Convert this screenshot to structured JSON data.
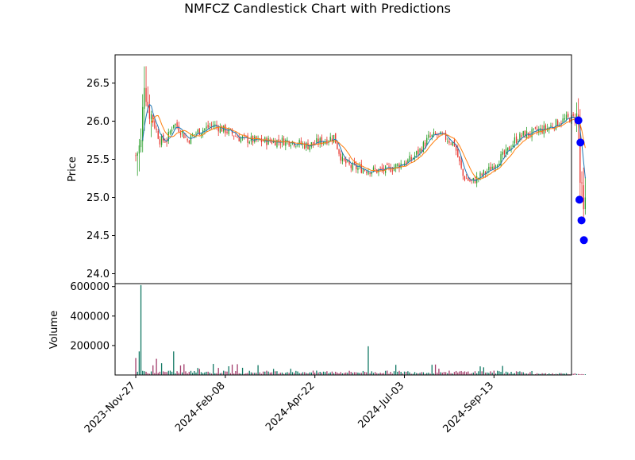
{
  "chart_data": {
    "type": "candlestick",
    "title": "NMFCZ Candlestick Chart with Predictions",
    "price_panel": {
      "ylabel": "Price",
      "ylim": [
        23.87,
        26.87
      ],
      "yticks": [
        "24.0",
        "24.5",
        "25.0",
        "25.5",
        "26.0",
        "26.5"
      ],
      "ytick_values": [
        24.0,
        24.5,
        25.0,
        25.5,
        26.0,
        26.5
      ],
      "moving_average_colors": [
        "#1f77b4",
        "#ff7f0e"
      ],
      "up_color": "#2ca02c",
      "down_color": "#e8312a",
      "prediction_marker_color": "#0000ff",
      "predictions": [
        {
          "x": 257.0,
          "y": 26.01
        },
        {
          "x": 258.2,
          "y": 25.72
        },
        {
          "x": 257.6,
          "y": 24.97
        },
        {
          "x": 258.8,
          "y": 24.7
        },
        {
          "x": 260.2,
          "y": 24.44
        }
      ],
      "trend_anchors": [
        [
          0,
          25.55
        ],
        [
          3,
          25.7
        ],
        [
          5,
          26.55
        ],
        [
          7,
          26.22
        ],
        [
          10,
          26.0
        ],
        [
          14,
          25.75
        ],
        [
          18,
          25.75
        ],
        [
          22,
          25.98
        ],
        [
          26,
          25.88
        ],
        [
          30,
          25.75
        ],
        [
          35,
          25.85
        ],
        [
          40,
          25.9
        ],
        [
          45,
          25.95
        ],
        [
          50,
          25.9
        ],
        [
          55,
          25.85
        ],
        [
          60,
          25.78
        ],
        [
          65,
          25.76
        ],
        [
          70,
          25.74
        ],
        [
          80,
          25.74
        ],
        [
          90,
          25.74
        ],
        [
          96,
          25.7
        ],
        [
          100,
          25.68
        ],
        [
          105,
          25.72
        ],
        [
          110,
          25.75
        ],
        [
          115,
          25.8
        ],
        [
          118,
          25.6
        ],
        [
          120,
          25.48
        ],
        [
          125,
          25.4
        ],
        [
          130,
          25.38
        ],
        [
          135,
          25.36
        ],
        [
          140,
          25.35
        ],
        [
          145,
          25.36
        ],
        [
          150,
          25.4
        ],
        [
          155,
          25.45
        ],
        [
          160,
          25.5
        ],
        [
          165,
          25.62
        ],
        [
          170,
          25.78
        ],
        [
          175,
          25.82
        ],
        [
          180,
          25.78
        ],
        [
          185,
          25.7
        ],
        [
          190,
          25.28
        ],
        [
          195,
          25.2
        ],
        [
          200,
          25.28
        ],
        [
          205,
          25.36
        ],
        [
          210,
          25.48
        ],
        [
          215,
          25.58
        ],
        [
          220,
          25.75
        ],
        [
          225,
          25.82
        ],
        [
          230,
          25.84
        ],
        [
          235,
          25.88
        ],
        [
          240,
          25.92
        ],
        [
          245,
          25.98
        ],
        [
          250,
          26.03
        ],
        [
          255,
          26.04
        ],
        [
          257,
          26.0
        ],
        [
          258,
          25.2
        ],
        [
          259,
          24.95
        ],
        [
          260,
          24.7
        ],
        [
          261,
          24.85
        ]
      ]
    },
    "volume_panel": {
      "ylabel": "Volume",
      "ylim": [
        0,
        620000
      ],
      "yticks": [
        "200000",
        "400000",
        "600000"
      ],
      "ytick_values": [
        200000,
        400000,
        600000
      ],
      "notable_bars": [
        {
          "x": 0,
          "value": 115000
        },
        {
          "x": 2,
          "value": 160000
        },
        {
          "x": 3,
          "value": 610000
        },
        {
          "x": 12,
          "value": 110000
        },
        {
          "x": 15,
          "value": 80000
        },
        {
          "x": 22,
          "value": 160000
        },
        {
          "x": 135,
          "value": 195000
        }
      ]
    },
    "x_axis": {
      "tick_labels": [
        "2023-Nov-27",
        "2024-Feb-08",
        "2024-Apr-22",
        "2024-Jul-03",
        "2024-Sep-13"
      ],
      "tick_positions": [
        0,
        52,
        104,
        156,
        208
      ],
      "xlim": [
        -12,
        253
      ]
    }
  }
}
